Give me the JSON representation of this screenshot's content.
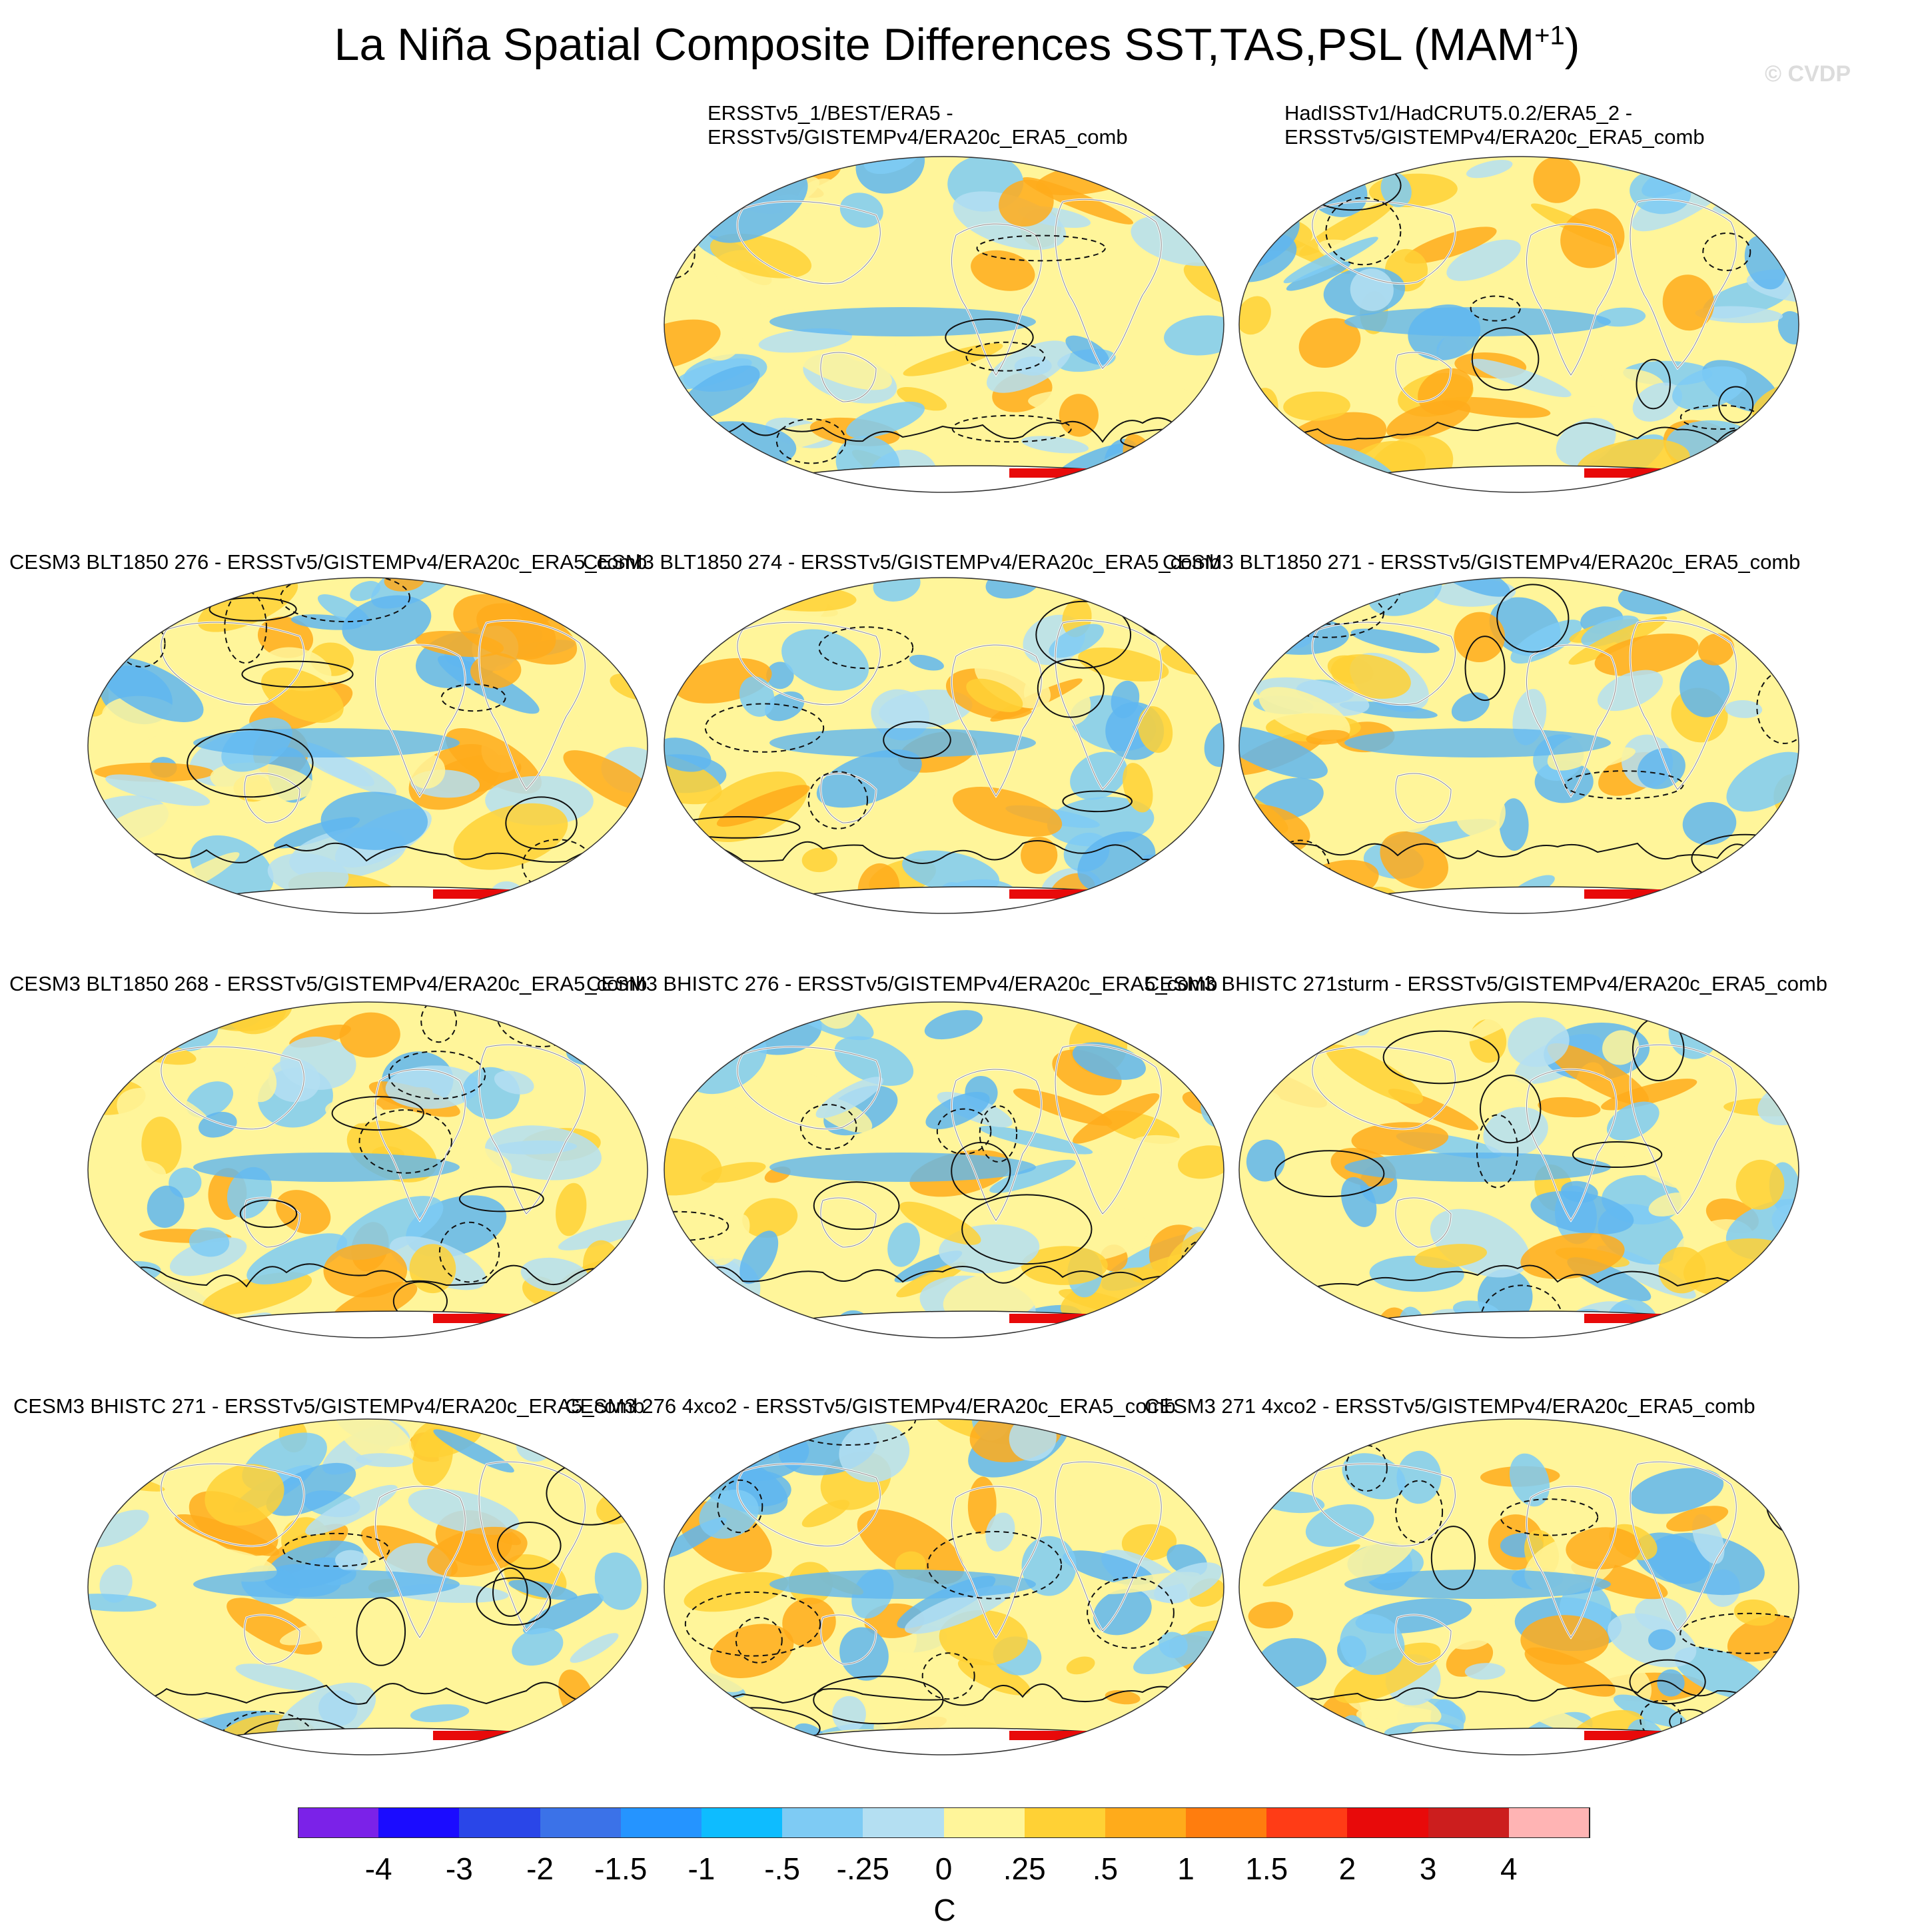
{
  "figure": {
    "title_main": "La Niña Spatial Composite Differences SST,TAS,PSL (MAM",
    "title_sup": "+1",
    "title_close": ")",
    "watermark": "© CVDP"
  },
  "panels": [
    {
      "line1": "ERSSTv5_1/BEST/ERA5 -",
      "line2": "ERSSTv5/GISTEMPv4/ERA20c_ERA5_comb"
    },
    {
      "line1": "HadISSTv1/HadCRUT5.0.2/ERA5_2 -",
      "line2": "ERSSTv5/GISTEMPv4/ERA20c_ERA5_comb"
    },
    {
      "line1": "CESM3 BLT1850 276 - ERSSTv5/GISTEMPv4/ERA20c_ERA5_comb"
    },
    {
      "line1": "CESM3 BLT1850 274 - ERSSTv5/GISTEMPv4/ERA20c_ERA5_comb"
    },
    {
      "line1": "CESM3 BLT1850 271 - ERSSTv5/GISTEMPv4/ERA20c_ERA5_comb"
    },
    {
      "line1": "CESM3 BLT1850 268 - ERSSTv5/GISTEMPv4/ERA20c_ERA5_comb"
    },
    {
      "line1": "CESM3 BHISTC 276 - ERSSTv5/GISTEMPv4/ERA20c_ERA5_comb"
    },
    {
      "line1": "CESM3 BHISTC 271sturm - ERSSTv5/GISTEMPv4/ERA20c_ERA5_comb"
    },
    {
      "line1": "CESM3 BHISTC 271 - ERSSTv5/GISTEMPv4/ERA20c_ERA5_comb"
    },
    {
      "line1": "CESM3 276 4xco2 - ERSSTv5/GISTEMPv4/ERA20c_ERA5_comb"
    },
    {
      "line1": "CESM3 271 4xco2 - ERSSTv5/GISTEMPv4/ERA20c_ERA5_comb"
    }
  ],
  "colorbar": {
    "unit": "C",
    "ticks": [
      "-4",
      "-3",
      "-2",
      "-1.5",
      "-1",
      "-.5",
      "-.25",
      "0",
      ".25",
      ".5",
      "1",
      "1.5",
      "2",
      "3",
      "4"
    ],
    "colors": [
      "#7b22e8",
      "#1b0cff",
      "#2a46e8",
      "#3b72e8",
      "#2594ff",
      "#0ebcff",
      "#7ecbf4",
      "#b4dff2",
      "#fff59a",
      "#ffd135",
      "#ffab1b",
      "#ff7d0e",
      "#ff3c16",
      "#e80a0a",
      "#cc1e1e",
      "#ffb4b4"
    ]
  }
}
